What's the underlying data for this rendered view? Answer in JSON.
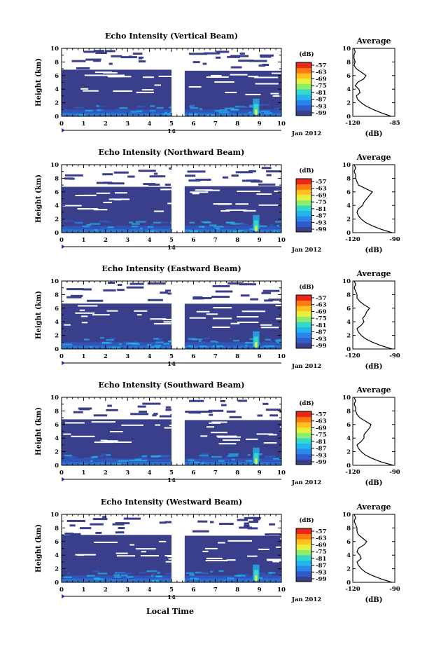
{
  "chart_data": {
    "type": "heatmap",
    "xlabel": "Local Time",
    "date_labels": {
      "day": "14",
      "month_year": "Jan 2012"
    },
    "x_ticks": [
      "0",
      "1",
      "2",
      "3",
      "4",
      "5",
      "6",
      "7",
      "8",
      "9",
      "10"
    ],
    "xlim": [
      0,
      10
    ],
    "ylabel": "Height (km)",
    "y_ticks": [
      "0",
      "2",
      "4",
      "6",
      "8",
      "10"
    ],
    "ylim": [
      0,
      10
    ],
    "colorbar": {
      "title": "(dB)",
      "ticks": [
        "-57",
        "-63",
        "-69",
        "-75",
        "-81",
        "-87",
        "-93",
        "-99"
      ],
      "colors": [
        "#3a3f8c",
        "#2f5cc8",
        "#2a86e8",
        "#22b5ee",
        "#33d8c8",
        "#8cec6c",
        "#e6f03a",
        "#ffc020",
        "#ff7a10",
        "#e82818"
      ]
    },
    "data_gap": [
      5.0,
      5.6
    ],
    "panels": [
      {
        "title": "Echo Intensity (Vertical Beam)",
        "profile": {
          "title": "Average",
          "xlabel": "(dB)",
          "x_ticks": [
            "-120",
            "-85"
          ],
          "xlim": [
            -120,
            -85
          ],
          "heights": [
            0,
            0.5,
            1,
            1.5,
            2,
            2.5,
            3,
            3.5,
            4,
            4.5,
            5,
            5.5,
            6,
            6.5,
            7,
            7.5,
            8,
            8.5,
            9,
            9.5,
            10
          ],
          "values": [
            -88,
            -96,
            -103,
            -109,
            -113,
            -116,
            -117,
            -114,
            -115,
            -118,
            -116,
            -111,
            -109,
            -113,
            -117,
            -119,
            -118,
            -119,
            -119,
            -118,
            -119
          ]
        }
      },
      {
        "title": "Echo Intensity (Northward Beam)",
        "profile": {
          "title": "Average",
          "xlabel": "(dB)",
          "x_ticks": [
            "-120",
            "-90"
          ],
          "xlim": [
            -120,
            -90
          ],
          "heights": [
            0,
            0.5,
            1,
            1.5,
            2,
            2.5,
            3,
            3.5,
            4,
            4.5,
            5,
            5.5,
            6,
            6.5,
            7,
            7.5,
            8,
            8.5,
            9,
            9.5,
            10
          ],
          "values": [
            -92,
            -100,
            -106,
            -111,
            -114,
            -116,
            -117,
            -116,
            -113,
            -112,
            -110,
            -108,
            -106,
            -111,
            -116,
            -117,
            -118,
            -118,
            -119,
            -118,
            -119
          ]
        }
      },
      {
        "title": "Echo Intensity (Eastward Beam)",
        "profile": {
          "title": "Average",
          "xlabel": "(dB)",
          "x_ticks": [
            "-120",
            "-90"
          ],
          "xlim": [
            -120,
            -90
          ],
          "heights": [
            0,
            0.5,
            1,
            1.5,
            2,
            2.5,
            3,
            3.5,
            4,
            4.5,
            5,
            5.5,
            6,
            6.5,
            7,
            7.5,
            8,
            8.5,
            9,
            9.5,
            10
          ],
          "values": [
            -92,
            -100,
            -106,
            -111,
            -114,
            -116,
            -117,
            -114,
            -112,
            -113,
            -111,
            -110,
            -108,
            -112,
            -115,
            -117,
            -117,
            -118,
            -119,
            -118,
            -119
          ]
        }
      },
      {
        "title": "Echo Intensity (Southward Beam)",
        "profile": {
          "title": "Average",
          "xlabel": "(dB)",
          "x_ticks": [
            "-120",
            "-90"
          ],
          "xlim": [
            -120,
            -90
          ],
          "heights": [
            0,
            0.5,
            1,
            1.5,
            2,
            2.5,
            3,
            3.5,
            4,
            4.5,
            5,
            5.5,
            6,
            6.5,
            7,
            7.5,
            8,
            8.5,
            9,
            9.5,
            10
          ],
          "values": [
            -91,
            -100,
            -106,
            -111,
            -114,
            -116,
            -117,
            -114,
            -112,
            -112,
            -110,
            -108,
            -107,
            -111,
            -115,
            -117,
            -118,
            -118,
            -119,
            -118,
            -119
          ]
        }
      },
      {
        "title": "Echo Intensity (Westward Beam)",
        "profile": {
          "title": "Average",
          "xlabel": "(dB)",
          "x_ticks": [
            "-120",
            "-90"
          ],
          "xlim": [
            -120,
            -90
          ],
          "heights": [
            0,
            0.5,
            1,
            1.5,
            2,
            2.5,
            3,
            3.5,
            4,
            4.5,
            5,
            5.5,
            6,
            6.5,
            7,
            7.5,
            8,
            8.5,
            9,
            9.5,
            10
          ],
          "values": [
            -92,
            -100,
            -106,
            -111,
            -114,
            -116,
            -117,
            -114,
            -115,
            -117,
            -116,
            -112,
            -110,
            -113,
            -116,
            -117,
            -117,
            -118,
            -119,
            -118,
            -119
          ]
        }
      }
    ]
  }
}
